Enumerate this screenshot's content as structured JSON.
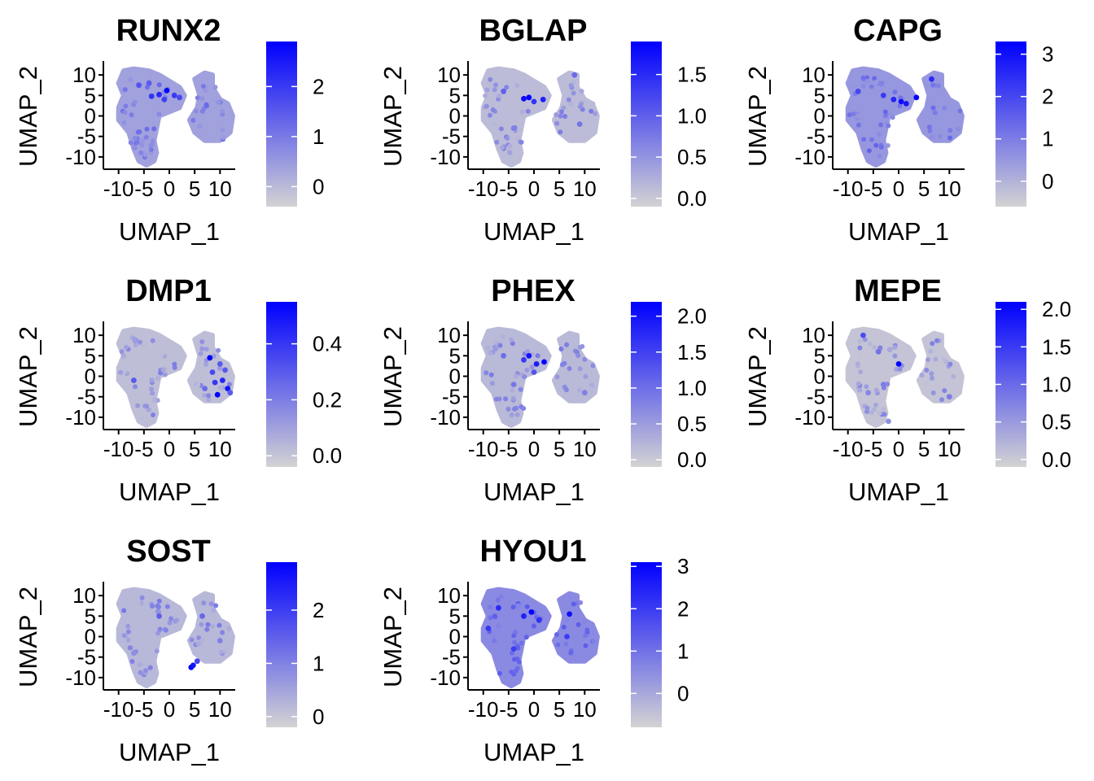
{
  "chart_data": {
    "type": "scatter",
    "subtype": "feature-plot-grid",
    "panels": [
      {
        "gene": "RUNX2",
        "xlabel": "UMAP_1",
        "ylabel": "UMAP_2",
        "xticks": [
          "-10",
          "-5",
          "0",
          "5",
          "10"
        ],
        "yticks": [
          "10",
          "5",
          "0",
          "-5",
          "-10"
        ],
        "xlim": [
          -13,
          13
        ],
        "ylim": [
          -13,
          13
        ],
        "colorbar": {
          "min": -0.4,
          "max": 2.9,
          "ticks": [
            0,
            1,
            2
          ],
          "tick_labels": [
            "0",
            "1",
            "2"
          ]
        },
        "base_level": 0.38,
        "highlights": [
          [
            -0.5,
            6.2,
            2.8
          ],
          [
            -2,
            5.2,
            2.3
          ],
          [
            -3.5,
            4.8,
            2.1
          ],
          [
            1,
            5,
            2.0
          ],
          [
            2,
            4.5,
            1.8
          ],
          [
            -6,
            7.5,
            1.6
          ],
          [
            -4,
            8,
            1.5
          ],
          [
            -1,
            4,
            1.9
          ]
        ]
      },
      {
        "gene": "BGLAP",
        "xlabel": "UMAP_1",
        "ylabel": "UMAP_2",
        "xticks": [
          "-10",
          "-5",
          "0",
          "5",
          "10"
        ],
        "yticks": [
          "10",
          "5",
          "0",
          "-5",
          "-10"
        ],
        "xlim": [
          -13,
          13
        ],
        "ylim": [
          -13,
          13
        ],
        "colorbar": {
          "min": -0.1,
          "max": 1.9,
          "ticks": [
            0,
            0.5,
            1,
            1.5
          ],
          "tick_labels": [
            "0.0",
            "0.5",
            "1.0",
            "1.5"
          ]
        },
        "base_level": 0.12,
        "highlights": [
          [
            -1,
            4.5,
            1.9
          ],
          [
            -2,
            4.2,
            1.8
          ],
          [
            1.8,
            4,
            1.6
          ],
          [
            0,
            3.5,
            1.4
          ],
          [
            -6,
            6,
            1.0
          ],
          [
            8,
            10,
            0.9
          ],
          [
            9,
            -2,
            0.8
          ],
          [
            -4,
            -3,
            0.7
          ]
        ]
      },
      {
        "gene": "CAPG",
        "xlabel": "UMAP_1",
        "ylabel": "UMAP_2",
        "xticks": [
          "-10",
          "-5",
          "0",
          "5",
          "10"
        ],
        "yticks": [
          "10",
          "5",
          "0",
          "-5",
          "-10"
        ],
        "xlim": [
          -13,
          13
        ],
        "ylim": [
          -13,
          13
        ],
        "colorbar": {
          "min": -0.6,
          "max": 3.3,
          "ticks": [
            0,
            1,
            2,
            3
          ],
          "tick_labels": [
            "0",
            "1",
            "2",
            "3"
          ]
        },
        "base_level": 0.5,
        "highlights": [
          [
            3.5,
            4.5,
            3.3
          ],
          [
            0.5,
            3.5,
            3.1
          ],
          [
            1.5,
            3,
            2.9
          ],
          [
            -1,
            4,
            2.6
          ],
          [
            6.5,
            9,
            2.5
          ],
          [
            -3,
            5,
            2.2
          ],
          [
            -8,
            6,
            2.0
          ]
        ]
      },
      {
        "gene": "DMP1",
        "xlabel": "UMAP_1",
        "ylabel": "UMAP_2",
        "xticks": [
          "-10",
          "-5",
          "0",
          "5",
          "10"
        ],
        "yticks": [
          "10",
          "5",
          "0",
          "-5",
          "-10"
        ],
        "xlim": [
          -13,
          13
        ],
        "ylim": [
          -13,
          13
        ],
        "colorbar": {
          "min": -0.04,
          "max": 0.55,
          "ticks": [
            0,
            0.2,
            0.4
          ],
          "tick_labels": [
            "0.0",
            "0.2",
            "0.4"
          ]
        },
        "base_level": 0.02,
        "highlights": [
          [
            8,
            4.5,
            0.55
          ],
          [
            9.5,
            -4.5,
            0.55
          ],
          [
            11.5,
            -3,
            0.5
          ],
          [
            10.5,
            -1,
            0.45
          ],
          [
            9,
            -1.5,
            0.4
          ],
          [
            8.5,
            1,
            0.35
          ],
          [
            11,
            1.5,
            0.3
          ],
          [
            10,
            3,
            0.3
          ],
          [
            7,
            -3,
            0.25
          ],
          [
            12,
            -4,
            0.3
          ],
          [
            -7,
            -1,
            0.3
          ]
        ]
      },
      {
        "gene": "PHEX",
        "xlabel": "UMAP_1",
        "ylabel": "UMAP_2",
        "xticks": [
          "-10",
          "-5",
          "0",
          "5",
          "10"
        ],
        "yticks": [
          "10",
          "5",
          "0",
          "-5",
          "-10"
        ],
        "xlim": [
          -13,
          13
        ],
        "ylim": [
          -13,
          13
        ],
        "colorbar": {
          "min": -0.1,
          "max": 2.2,
          "ticks": [
            0,
            0.5,
            1,
            1.5,
            2
          ],
          "tick_labels": [
            "0.0",
            "0.5",
            "1.0",
            "1.5",
            "2.0"
          ]
        },
        "base_level": 0.18,
        "highlights": [
          [
            2,
            3.5,
            2.2
          ],
          [
            -1,
            5,
            2.0
          ],
          [
            0.5,
            3,
            1.9
          ],
          [
            -2,
            4,
            1.6
          ],
          [
            0,
            1,
            1.3
          ],
          [
            -6,
            5,
            1.0
          ],
          [
            -4,
            -2,
            0.9
          ],
          [
            10,
            -4,
            0.8
          ]
        ]
      },
      {
        "gene": "MEPE",
        "xlabel": "UMAP_1",
        "ylabel": "UMAP_2",
        "xticks": [
          "-10",
          "-5",
          "0",
          "5",
          "10"
        ],
        "yticks": [
          "10",
          "5",
          "0",
          "-5",
          "-10"
        ],
        "xlim": [
          -13,
          13
        ],
        "ylim": [
          -13,
          13
        ],
        "colorbar": {
          "min": -0.1,
          "max": 2.1,
          "ticks": [
            0,
            0.5,
            1,
            1.5,
            2
          ],
          "tick_labels": [
            "0.0",
            "0.5",
            "1.0",
            "1.5",
            "2.0"
          ]
        },
        "base_level": 0.06,
        "highlights": [
          [
            0,
            3,
            2.1
          ],
          [
            -7,
            10,
            1.3
          ],
          [
            -4,
            6,
            0.9
          ],
          [
            -3,
            -2,
            0.8
          ],
          [
            -6,
            -4,
            0.7
          ],
          [
            10,
            -5,
            0.8
          ],
          [
            -2,
            -11,
            0.6
          ]
        ]
      },
      {
        "gene": "SOST",
        "xlabel": "UMAP_1",
        "ylabel": "UMAP_2",
        "xticks": [
          "-10",
          "-5",
          "0",
          "5",
          "10"
        ],
        "yticks": [
          "10",
          "5",
          "0",
          "-5",
          "-10"
        ],
        "xlim": [
          -13,
          13
        ],
        "ylim": [
          -13,
          13
        ],
        "colorbar": {
          "min": -0.2,
          "max": 2.9,
          "ticks": [
            0,
            1,
            2
          ],
          "tick_labels": [
            "0",
            "1",
            "2"
          ]
        },
        "base_level": 0.2,
        "highlights": [
          [
            4.3,
            -7.5,
            2.9
          ],
          [
            4.7,
            -7,
            2.6
          ],
          [
            5.5,
            -6,
            1.9
          ],
          [
            -2,
            5,
            1.5
          ],
          [
            6.5,
            5,
            1.4
          ],
          [
            10,
            -1,
            1.0
          ],
          [
            -7,
            -4,
            0.8
          ]
        ]
      },
      {
        "gene": "HYOU1",
        "xlabel": "UMAP_1",
        "ylabel": "UMAP_2",
        "xticks": [
          "-10",
          "-5",
          "0",
          "5",
          "10"
        ],
        "yticks": [
          "10",
          "5",
          "0",
          "-5",
          "-10"
        ],
        "xlim": [
          -13,
          13
        ],
        "ylim": [
          -13,
          13
        ],
        "colorbar": {
          "min": -0.8,
          "max": 3.1,
          "ticks": [
            0,
            1,
            2,
            3
          ],
          "tick_labels": [
            "0",
            "1",
            "2",
            "3"
          ]
        },
        "base_level": 0.55,
        "highlights": [
          [
            -0.5,
            6,
            3.1
          ],
          [
            7,
            5.5,
            2.8
          ],
          [
            -2,
            5,
            2.5
          ],
          [
            -7,
            7,
            2.3
          ],
          [
            1,
            4,
            2.2
          ],
          [
            -9,
            2,
            2.1
          ],
          [
            -4,
            -3,
            2.0
          ],
          [
            6.5,
            0,
            2.0
          ]
        ]
      }
    ],
    "color_low": "#d3d3d3",
    "color_high": "#0000ff"
  }
}
